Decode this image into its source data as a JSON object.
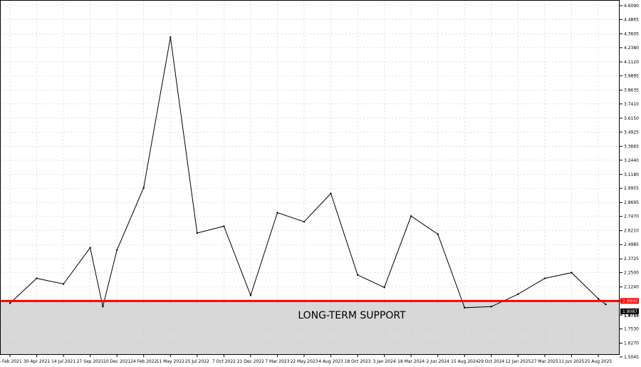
{
  "chart_data": {
    "type": "line",
    "title": "",
    "xlabel": "",
    "ylabel": "",
    "grid": true,
    "ylim": [
      1.5045,
      4.609
    ],
    "y_ticks": [
      "4.6090",
      "4.4865",
      "4.3605",
      "4.2380",
      "4.1120",
      "3.9895",
      "3.8635",
      "3.7410",
      "3.6150",
      "3.4925",
      "3.3665",
      "3.2440",
      "3.1180",
      "2.9955",
      "2.8695",
      "2.7470",
      "2.6210",
      "2.4985",
      "2.3725",
      "2.2500",
      "2.1240",
      "2.0000",
      "1.8755",
      "1.7530",
      "1.6270",
      "1.5045"
    ],
    "x_ticks": [
      "5 Feb 2021",
      "30 Apr 2021",
      "14 Jul 2021",
      "27 Sep 2021",
      "10 Dec 2021",
      "24 Feb 2022",
      "11 May 2022",
      "25 Jul 2022",
      "7 Oct 2022",
      "21 Dec 2022",
      "7 Mar 2023",
      "22 May 2023",
      "4 Aug 2023",
      "18 Oct 2023",
      "3 Jan 2024",
      "18 Mar 2024",
      "2 Jun 2024",
      "15 Aug 2024",
      "29 Oct 2024",
      "12 Jan 2025",
      "27 Mar 2025",
      "11 Jun 2025",
      "25 Aug 2025"
    ],
    "series": [
      {
        "x": [
          "5 Feb 2021",
          "30 Apr 2021",
          "14 Jul 2021",
          "27 Sep 2021",
          "1 Nov 2021",
          "10 Dec 2021",
          "24 Feb 2022",
          "11 May 2022",
          "25 Jul 2022",
          "7 Oct 2022",
          "21 Dec 2022",
          "7 Mar 2023",
          "22 May 2023",
          "4 Aug 2023",
          "18 Oct 2023",
          "3 Jan 2024",
          "18 Mar 2024",
          "2 Jun 2024",
          "15 Aug 2024",
          "29 Oct 2024",
          "12 Jan 2025",
          "27 Mar 2025",
          "11 Jun 2025",
          "25 Aug 2025",
          "15 Sep 2025"
        ],
        "y": [
          1.98,
          2.2,
          2.15,
          2.47,
          1.95,
          2.45,
          3.0,
          4.33,
          2.6,
          2.66,
          2.05,
          2.78,
          2.7,
          2.95,
          2.23,
          2.12,
          2.75,
          2.59,
          1.94,
          1.95,
          2.06,
          2.2,
          2.25,
          2.02,
          1.97
        ]
      }
    ],
    "support_level": {
      "value": 2.0,
      "value_label": "2.0000",
      "label": "LONG-TERM SUPPORT",
      "color": "#ff0000",
      "zone_color": "#d8d8d8"
    },
    "current_price": "1.9087",
    "current_price_ghost": "1.8755"
  }
}
